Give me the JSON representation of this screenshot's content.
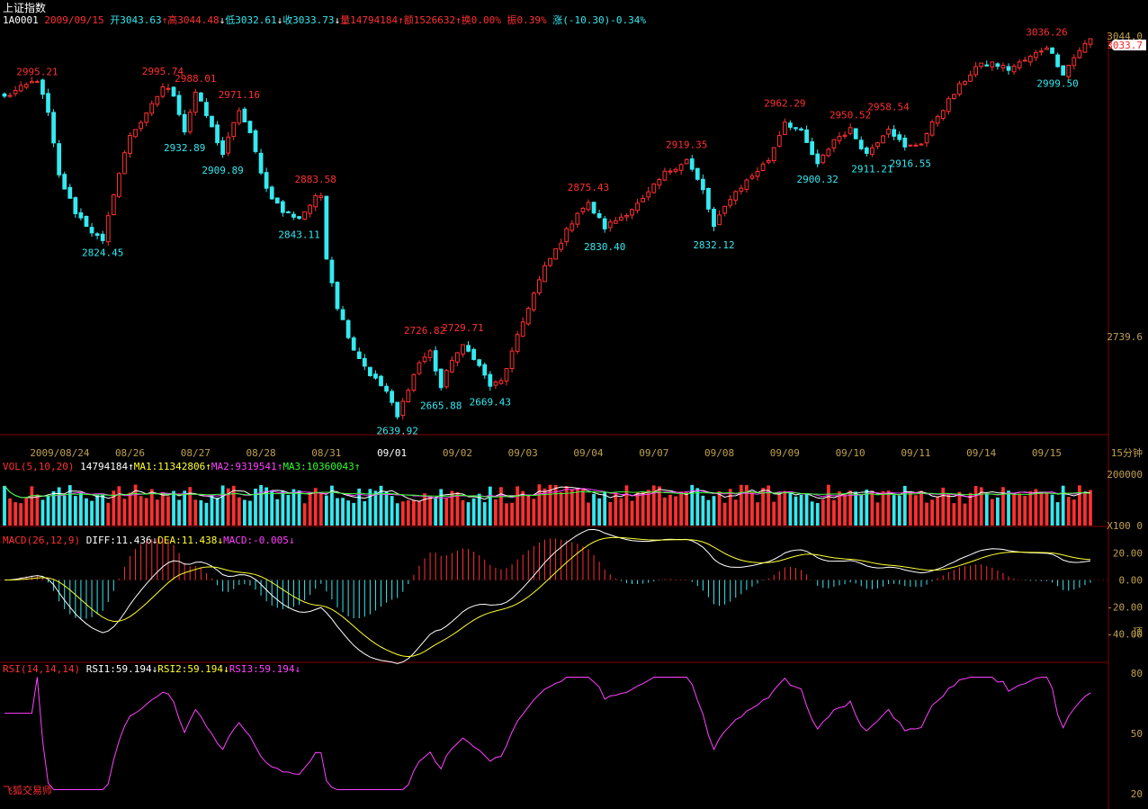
{
  "title": "上证指数",
  "header": {
    "code": "1A0001",
    "date": "2009/09/15",
    "open": "开3043.63",
    "high": "高3044.48",
    "low": "低3032.61",
    "close": "收3033.73",
    "volume": "量14794184",
    "amount": "额1526632",
    "turnover": "换0.00%",
    "amplitude": "振0.39%",
    "change": "涨(-10.30)-0.34%"
  },
  "price_panel": {
    "right_top": "3044.0",
    "current_tag": "3033.7",
    "right_mid": "2739.6",
    "period": "15分钟",
    "peak_labels": [
      {
        "text": "2995.21",
        "x": 6,
        "y": 2995.21,
        "kind": "high"
      },
      {
        "text": "2995.74",
        "x": 29,
        "y": 2995.74,
        "kind": "high"
      },
      {
        "text": "2988.01",
        "x": 35,
        "y": 2988.01,
        "kind": "high"
      },
      {
        "text": "2971.16",
        "x": 43,
        "y": 2971.16,
        "kind": "high"
      },
      {
        "text": "2883.58",
        "x": 57,
        "y": 2883.58,
        "kind": "high"
      },
      {
        "text": "2726.82",
        "x": 77,
        "y": 2726.82,
        "kind": "high"
      },
      {
        "text": "2729.71",
        "x": 84,
        "y": 2729.71,
        "kind": "high"
      },
      {
        "text": "2875.43",
        "x": 107,
        "y": 2875.43,
        "kind": "high"
      },
      {
        "text": "2919.35",
        "x": 125,
        "y": 2919.35,
        "kind": "high"
      },
      {
        "text": "2962.29",
        "x": 143,
        "y": 2962.29,
        "kind": "high"
      },
      {
        "text": "2950.52",
        "x": 155,
        "y": 2950.52,
        "kind": "high"
      },
      {
        "text": "2958.54",
        "x": 162,
        "y": 2958.54,
        "kind": "high"
      },
      {
        "text": "3036.26",
        "x": 191,
        "y": 3036.26,
        "kind": "high"
      },
      {
        "text": "2824.45",
        "x": 18,
        "y": 2824.45,
        "kind": "low"
      },
      {
        "text": "2932.89",
        "x": 33,
        "y": 2932.89,
        "kind": "low"
      },
      {
        "text": "2909.89",
        "x": 40,
        "y": 2909.89,
        "kind": "low"
      },
      {
        "text": "2843.11",
        "x": 54,
        "y": 2843.11,
        "kind": "low"
      },
      {
        "text": "2639.92",
        "x": 72,
        "y": 2639.92,
        "kind": "low"
      },
      {
        "text": "2665.88",
        "x": 80,
        "y": 2665.88,
        "kind": "low"
      },
      {
        "text": "2669.43",
        "x": 89,
        "y": 2669.43,
        "kind": "low"
      },
      {
        "text": "2830.40",
        "x": 110,
        "y": 2830.4,
        "kind": "low"
      },
      {
        "text": "2832.12",
        "x": 130,
        "y": 2832.12,
        "kind": "low"
      },
      {
        "text": "2900.32",
        "x": 149,
        "y": 2900.32,
        "kind": "low"
      },
      {
        "text": "2911.21",
        "x": 159,
        "y": 2911.21,
        "kind": "low"
      },
      {
        "text": "2916.55",
        "x": 166,
        "y": 2916.55,
        "kind": "low"
      },
      {
        "text": "2999.50",
        "x": 193,
        "y": 2999.5,
        "kind": "low"
      }
    ],
    "date_labels": [
      {
        "text": "2009/08/24",
        "x": 5,
        "major": false
      },
      {
        "text": "08/26",
        "x": 23,
        "major": false
      },
      {
        "text": "08/27",
        "x": 35,
        "major": false
      },
      {
        "text": "08/28",
        "x": 47,
        "major": false
      },
      {
        "text": "08/31",
        "x": 59,
        "major": false
      },
      {
        "text": "09/01",
        "x": 71,
        "major": true
      },
      {
        "text": "09/02",
        "x": 83,
        "major": false
      },
      {
        "text": "09/03",
        "x": 95,
        "major": false
      },
      {
        "text": "09/04",
        "x": 107,
        "major": false
      },
      {
        "text": "09/07",
        "x": 119,
        "major": false
      },
      {
        "text": "09/08",
        "x": 131,
        "major": false
      },
      {
        "text": "09/09",
        "x": 143,
        "major": false
      },
      {
        "text": "09/10",
        "x": 155,
        "major": false
      },
      {
        "text": "09/11",
        "x": 167,
        "major": false
      },
      {
        "text": "09/14",
        "x": 179,
        "major": false
      },
      {
        "text": "09/15",
        "x": 191,
        "major": false
      }
    ]
  },
  "vol_panel": {
    "name": "VOL(5,10,20)",
    "value": "14794184",
    "ma1": "MA1:11342806",
    "ma2": "MA2:9319541",
    "ma3": "MA3:10360043",
    "axis_top": "200000",
    "axis_bottom": "X100 0"
  },
  "macd_panel": {
    "name": "MACD(26,12,9)",
    "diff": "DIFF:11.436",
    "dea": "DEA:11.438",
    "macd": "MACD:-0.005",
    "ticks": [
      {
        "text": "20.00",
        "v": 20
      },
      {
        "text": "0.00",
        "v": 0
      },
      {
        "text": "-20.00",
        "v": -20
      },
      {
        "text": "-40.00",
        "v": -40
      }
    ],
    "extra": "顶"
  },
  "rsi_panel": {
    "name": "RSI(14,14,14)",
    "rsi1": "RSI1:59.194",
    "rsi2": "RSI2:59.194",
    "rsi3": "RSI3:59.194",
    "ticks": [
      {
        "text": "80",
        "v": 80
      },
      {
        "text": "50",
        "v": 50
      },
      {
        "text": "20",
        "v": 20
      }
    ]
  },
  "watermark": "飞狐交易师",
  "colors": {
    "up": "#ff3030",
    "down": "#35e9f0",
    "label_high": "#ff3030",
    "label_low": "#35e9f0",
    "ma1": "#ffffff",
    "ma2": "#ff40ff",
    "ma3": "#30ff30",
    "diff": "#ffffff",
    "dea": "#ffff30",
    "rsi": "#ff40ff",
    "axis": "#c0a050",
    "grid": "#800000"
  },
  "chart_data": {
    "type": "candlestick",
    "title": "上证指数",
    "interval": "15分钟",
    "bar_count": 200,
    "anchors": [
      [
        0,
        2977
      ],
      [
        6,
        2995
      ],
      [
        8,
        2960
      ],
      [
        10,
        2895
      ],
      [
        13,
        2858
      ],
      [
        16,
        2838
      ],
      [
        18,
        2826
      ],
      [
        20,
        2878
      ],
      [
        23,
        2938
      ],
      [
        26,
        2958
      ],
      [
        29,
        2988
      ],
      [
        31,
        2980
      ],
      [
        33,
        2942
      ],
      [
        35,
        2982
      ],
      [
        37,
        2958
      ],
      [
        40,
        2918
      ],
      [
        43,
        2964
      ],
      [
        45,
        2938
      ],
      [
        48,
        2882
      ],
      [
        51,
        2858
      ],
      [
        54,
        2852
      ],
      [
        57,
        2872
      ],
      [
        58,
        2875
      ],
      [
        59,
        2812
      ],
      [
        61,
        2760
      ],
      [
        64,
        2716
      ],
      [
        67,
        2690
      ],
      [
        70,
        2672
      ],
      [
        72,
        2645
      ],
      [
        74,
        2676
      ],
      [
        76,
        2702
      ],
      [
        78,
        2713
      ],
      [
        80,
        2676
      ],
      [
        82,
        2706
      ],
      [
        84,
        2718
      ],
      [
        86,
        2708
      ],
      [
        89,
        2678
      ],
      [
        91,
        2682
      ],
      [
        93,
        2712
      ],
      [
        96,
        2760
      ],
      [
        99,
        2800
      ],
      [
        102,
        2828
      ],
      [
        105,
        2858
      ],
      [
        107,
        2866
      ],
      [
        110,
        2842
      ],
      [
        113,
        2853
      ],
      [
        117,
        2870
      ],
      [
        121,
        2898
      ],
      [
        125,
        2912
      ],
      [
        128,
        2880
      ],
      [
        130,
        2842
      ],
      [
        133,
        2873
      ],
      [
        136,
        2890
      ],
      [
        140,
        2912
      ],
      [
        143,
        2952
      ],
      [
        146,
        2940
      ],
      [
        149,
        2906
      ],
      [
        152,
        2933
      ],
      [
        155,
        2943
      ],
      [
        158,
        2918
      ],
      [
        162,
        2946
      ],
      [
        165,
        2924
      ],
      [
        168,
        2930
      ],
      [
        171,
        2958
      ],
      [
        175,
        2988
      ],
      [
        178,
        3008
      ],
      [
        181,
        3012
      ],
      [
        184,
        3006
      ],
      [
        188,
        3018
      ],
      [
        191,
        3030
      ],
      [
        194,
        3002
      ],
      [
        197,
        3026
      ],
      [
        200,
        3042
      ],
      [
        201,
        3034
      ]
    ],
    "ylim": [
      2630,
      3044
    ],
    "vol_ylim": [
      0,
      200000
    ],
    "macd_ylim": [
      -45,
      25
    ],
    "rsi_ylim": [
      20,
      80
    ]
  }
}
